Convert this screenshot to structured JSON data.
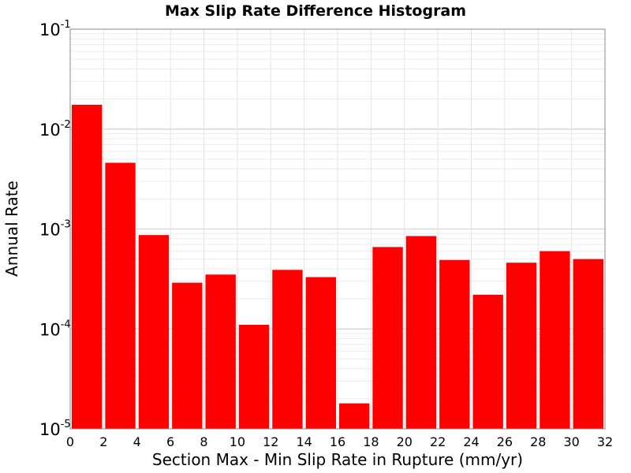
{
  "chart_data": {
    "type": "bar",
    "title": "Max Slip Rate Difference Histogram",
    "xlabel": "Section Max - Min Slip Rate in Rupture (mm/yr)",
    "ylabel": "Annual Rate",
    "xlim": [
      0,
      32
    ],
    "ylim": [
      1e-05,
      0.1
    ],
    "yscale": "log",
    "x_ticks": [
      "0",
      "2",
      "4",
      "6",
      "8",
      "10",
      "12",
      "14",
      "16",
      "18",
      "20",
      "22",
      "24",
      "26",
      "28",
      "30",
      "32"
    ],
    "y_ticks": [
      {
        "base": "10",
        "exp": "-1",
        "value": 0.1
      },
      {
        "base": "10",
        "exp": "-2",
        "value": 0.01
      },
      {
        "base": "10",
        "exp": "-3",
        "value": 0.001
      },
      {
        "base": "10",
        "exp": "-4",
        "value": 0.0001
      },
      {
        "base": "10",
        "exp": "-5",
        "value": 1e-05
      }
    ],
    "grid": true,
    "bar_color": "#ff0000",
    "bin_width": 2,
    "bins": [
      {
        "x": 1,
        "value": 0.0175
      },
      {
        "x": 3,
        "value": 0.0046
      },
      {
        "x": 5,
        "value": 0.00087
      },
      {
        "x": 7,
        "value": 0.00029
      },
      {
        "x": 9,
        "value": 0.00035
      },
      {
        "x": 11,
        "value": 0.00011
      },
      {
        "x": 13,
        "value": 0.00039
      },
      {
        "x": 15,
        "value": 0.00033
      },
      {
        "x": 17,
        "value": 1.8e-05
      },
      {
        "x": 19,
        "value": 0.00066
      },
      {
        "x": 21,
        "value": 0.00085
      },
      {
        "x": 23,
        "value": 0.00049
      },
      {
        "x": 25,
        "value": 0.00022
      },
      {
        "x": 27,
        "value": 0.00046
      },
      {
        "x": 29,
        "value": 0.0006
      },
      {
        "x": 31,
        "value": 0.0005
      }
    ]
  }
}
